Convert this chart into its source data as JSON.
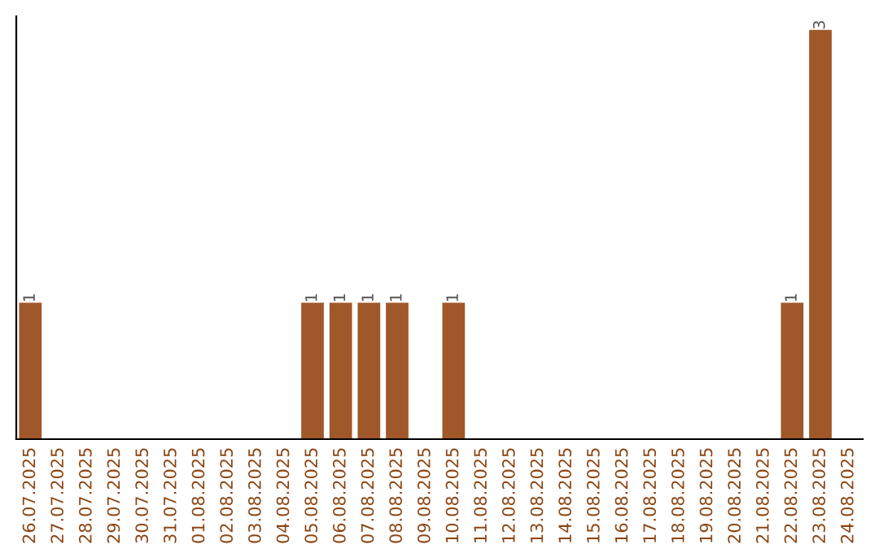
{
  "chart_data": {
    "type": "bar",
    "categories": [
      "26.07.2025",
      "27.07.2025",
      "28.07.2025",
      "29.07.2025",
      "30.07.2025",
      "31.07.2025",
      "01.08.2025",
      "02.08.2025",
      "03.08.2025",
      "04.08.2025",
      "05.08.2025",
      "06.08.2025",
      "07.08.2025",
      "08.08.2025",
      "09.08.2025",
      "10.08.2025",
      "11.08.2025",
      "12.08.2025",
      "13.08.2025",
      "14.08.2025",
      "15.08.2025",
      "16.08.2025",
      "17.08.2025",
      "18.08.2025",
      "19.08.2025",
      "20.08.2025",
      "21.08.2025",
      "22.08.2025",
      "23.08.2025",
      "24.08.2025"
    ],
    "values": [
      1,
      0,
      0,
      0,
      0,
      0,
      0,
      0,
      0,
      0,
      1,
      1,
      1,
      1,
      0,
      1,
      0,
      0,
      0,
      0,
      0,
      0,
      0,
      0,
      0,
      0,
      0,
      1,
      3,
      0
    ],
    "value_labels": [
      "1",
      null,
      null,
      null,
      null,
      null,
      null,
      null,
      null,
      null,
      "1",
      "1",
      "1",
      "1",
      null,
      "1",
      null,
      null,
      null,
      null,
      null,
      null,
      null,
      null,
      null,
      null,
      null,
      "1",
      "3",
      null
    ],
    "color": "#a0582a",
    "ylim": [
      0,
      3.1
    ],
    "tick_labels": "x",
    "grid": false,
    "legend": false
  }
}
